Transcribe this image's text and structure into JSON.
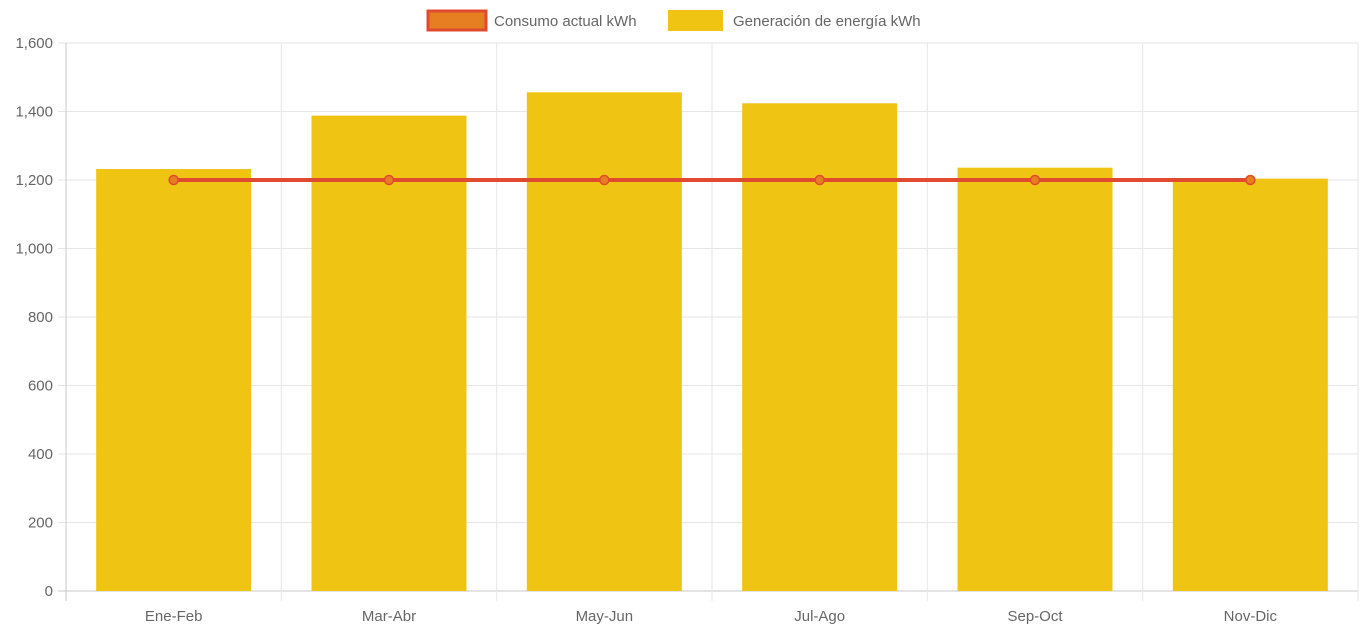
{
  "chart_data": {
    "type": "bar",
    "categories": [
      "Ene-Feb",
      "Mar-Abr",
      "May-Jun",
      "Jul-Ago",
      "Sep-Oct",
      "Nov-Dic"
    ],
    "series": [
      {
        "name": "Generación de energía kWh",
        "type": "bar",
        "values": [
          1232,
          1388,
          1456,
          1424,
          1236,
          1204
        ],
        "color": "#f0c413"
      },
      {
        "name": "Consumo actual kWh",
        "type": "line",
        "values": [
          1200,
          1200,
          1200,
          1200,
          1200,
          1200
        ],
        "color": "#e04b2f",
        "point_color": "#e67e22"
      }
    ],
    "legend_order": [
      "Consumo actual kWh",
      "Generación de energía kWh"
    ],
    "ylim": [
      0,
      1600
    ],
    "yticks": [
      0,
      200,
      400,
      600,
      800,
      1000,
      1200,
      1400,
      1600
    ],
    "ytick_labels": [
      "0",
      "200",
      "400",
      "600",
      "800",
      "1,000",
      "1,200",
      "1,400",
      "1,600"
    ],
    "grid": true,
    "legend_position": "top-center",
    "title": "",
    "xlabel": "",
    "ylabel": ""
  }
}
